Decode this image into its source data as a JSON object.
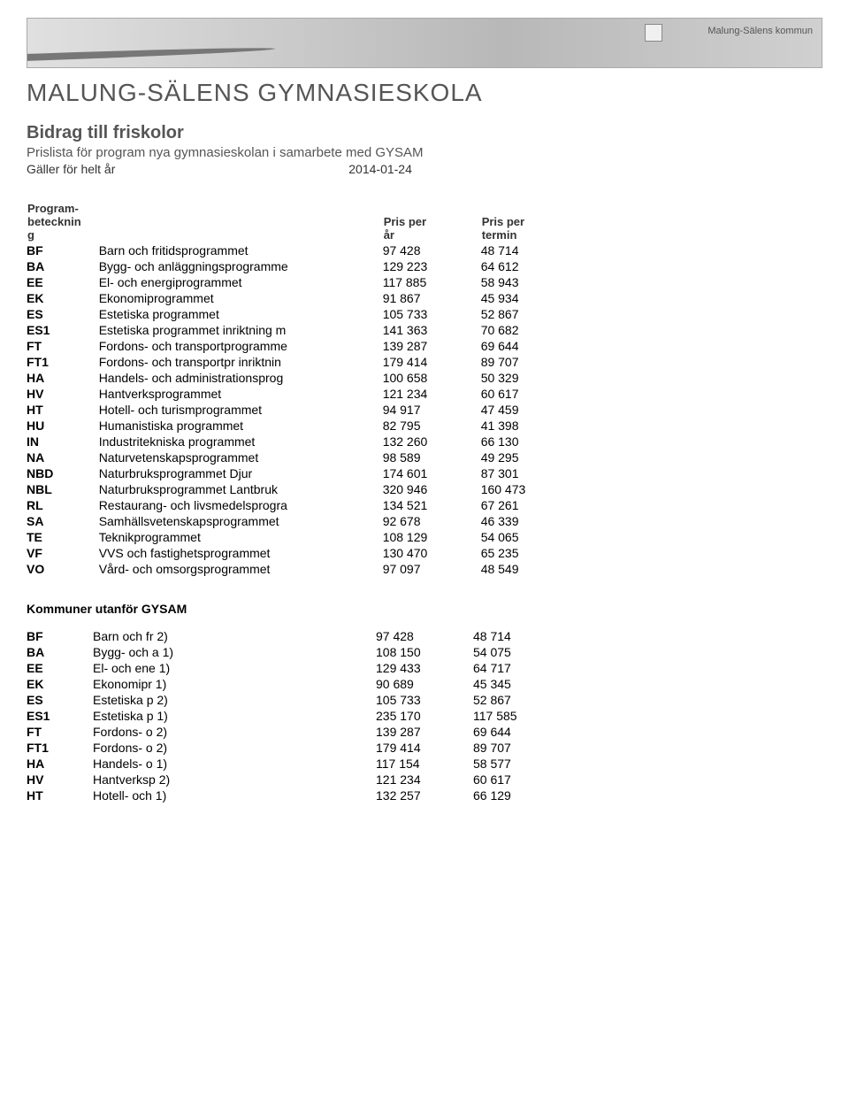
{
  "header": {
    "banner_text": "Malung-Sälens kommun",
    "school_title": "MALUNG-SÄLENS GYMNASIESKOLA",
    "doc_title": "Bidrag till friskolor",
    "subtitle": "Prislista för program nya gymnasieskolan i samarbete med GYSAM",
    "validity_label": "Gäller för helt år",
    "validity_date": "2014-01-24"
  },
  "table1": {
    "head": {
      "code_line1": "Program-",
      "code_line2": "betecknin",
      "code_line3": "g",
      "name_header": "",
      "year_line1": "Pris per",
      "year_line2": "år",
      "term_line1": "Pris per",
      "term_line2": "termin"
    },
    "rows": [
      {
        "code": "BF",
        "name": "Barn och fritidsprogrammet",
        "year": "97 428",
        "term": "48 714"
      },
      {
        "code": "BA",
        "name": "Bygg- och anläggningsprogramme",
        "year": "129 223",
        "term": "64 612"
      },
      {
        "code": "EE",
        "name": "El- och energiprogrammet",
        "year": "117 885",
        "term": "58 943"
      },
      {
        "code": "EK",
        "name": "Ekonomiprogrammet",
        "year": "91 867",
        "term": "45 934"
      },
      {
        "code": "ES",
        "name": "Estetiska programmet",
        "year": "105 733",
        "term": "52 867"
      },
      {
        "code": "ES1",
        "name": "Estetiska programmet inriktning m",
        "year": "141 363",
        "term": "70 682"
      },
      {
        "code": "FT",
        "name": "Fordons- och transportprogramme",
        "year": "139 287",
        "term": "69 644"
      },
      {
        "code": "FT1",
        "name": "Fordons- och transportpr inriktnin",
        "year": "179 414",
        "term": "89 707"
      },
      {
        "code": "HA",
        "name": "Handels- och administrationsprog",
        "year": "100 658",
        "term": "50 329"
      },
      {
        "code": "HV",
        "name": "Hantverksprogrammet",
        "year": "121 234",
        "term": "60 617"
      },
      {
        "code": "HT",
        "name": "Hotell- och turismprogrammet",
        "year": "94 917",
        "term": "47 459"
      },
      {
        "code": "HU",
        "name": "Humanistiska programmet",
        "year": "82 795",
        "term": "41 398"
      },
      {
        "code": "IN",
        "name": "Industritekniska programmet",
        "year": "132 260",
        "term": "66 130"
      },
      {
        "code": "NA",
        "name": "Naturvetenskapsprogrammet",
        "year": "98 589",
        "term": "49 295"
      },
      {
        "code": "NBD",
        "name": "Naturbruksprogrammet Djur",
        "year": "174 601",
        "term": "87 301"
      },
      {
        "code": "NBL",
        "name": "Naturbruksprogrammet Lantbruk",
        "year": "320 946",
        "term": "160 473"
      },
      {
        "code": "RL",
        "name": "Restaurang- och livsmedelsprogra",
        "year": "134 521",
        "term": "67 261"
      },
      {
        "code": "SA",
        "name": "Samhällsvetenskapsprogrammet",
        "year": "92 678",
        "term": "46 339"
      },
      {
        "code": "TE",
        "name": "Teknikprogrammet",
        "year": "108 129",
        "term": "54 065"
      },
      {
        "code": "VF",
        "name": "VVS och fastighetsprogrammet",
        "year": "130 470",
        "term": "65 235"
      },
      {
        "code": "VO",
        "name": "Vård- och omsorgsprogrammet",
        "year": "97 097",
        "term": "48 549"
      }
    ]
  },
  "section2": {
    "heading": "Kommuner utanför GYSAM"
  },
  "table2": {
    "rows": [
      {
        "code": "BF",
        "name": "Barn och fr 2)",
        "year": "97 428",
        "term": "48 714"
      },
      {
        "code": "BA",
        "name": "Bygg- och a 1)",
        "year": "108 150",
        "term": "54 075"
      },
      {
        "code": "EE",
        "name": "El- och ene 1)",
        "year": "129 433",
        "term": "64 717"
      },
      {
        "code": "EK",
        "name": "Ekonomipr 1)",
        "year": "90 689",
        "term": "45 345"
      },
      {
        "code": "ES",
        "name": "Estetiska p 2)",
        "year": "105 733",
        "term": "52 867"
      },
      {
        "code": "ES1",
        "name": "Estetiska p 1)",
        "year": "235 170",
        "term": "117 585"
      },
      {
        "code": "FT",
        "name": "Fordons- o 2)",
        "year": "139 287",
        "term": "69 644"
      },
      {
        "code": "FT1",
        "name": "Fordons- o 2)",
        "year": "179 414",
        "term": "89 707"
      },
      {
        "code": "HA",
        "name": "Handels- o 1)",
        "year": "117 154",
        "term": "58 577"
      },
      {
        "code": "HV",
        "name": "Hantverksp 2)",
        "year": "121 234",
        "term": "60 617"
      },
      {
        "code": "HT",
        "name": "Hotell- och 1)",
        "year": "132 257",
        "term": "66 129"
      }
    ]
  },
  "style": {
    "background_color": "#ffffff",
    "text_color": "#000000",
    "heading_color": "#555555",
    "font_family": "Arial, Helvetica, sans-serif",
    "title_fontsize": 28,
    "doc_title_fontsize": 20,
    "body_fontsize": 14
  }
}
